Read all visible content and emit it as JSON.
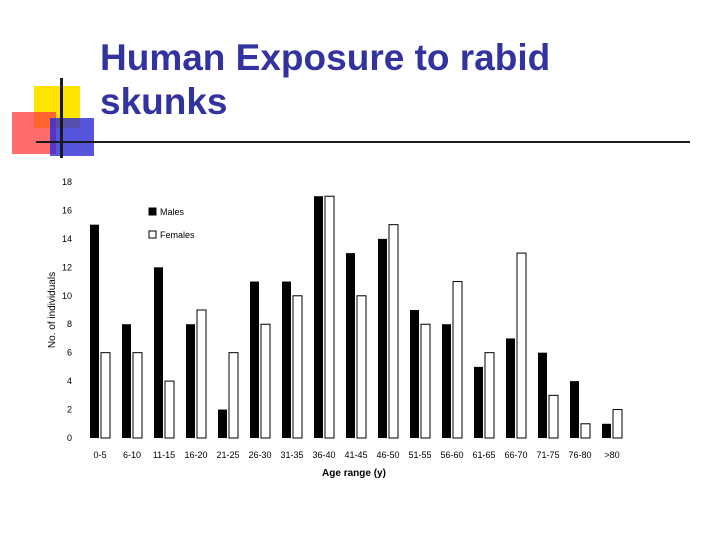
{
  "slide": {
    "title": "Human Exposure to rabid\nskunks"
  },
  "chart_data": {
    "type": "bar",
    "xlabel": "Age range (y)",
    "ylabel": "No. of individuals",
    "ylim": [
      0,
      18
    ],
    "yticks": [
      0,
      2,
      4,
      6,
      8,
      10,
      12,
      14,
      16,
      18
    ],
    "grid": false,
    "legend_position": "top-left",
    "categories": [
      "0-5",
      "6-10",
      "11-15",
      "16-20",
      "21-25",
      "26-30",
      "31-35",
      "36-40",
      "41-45",
      "46-50",
      "51-55",
      "56-60",
      "61-65",
      "66-70",
      "71-75",
      "76-80",
      ">80"
    ],
    "series": [
      {
        "name": "Males",
        "color": "#000000",
        "fill": "solid",
        "values": [
          15,
          8,
          12,
          8,
          2,
          11,
          11,
          17,
          13,
          14,
          9,
          8,
          5,
          7,
          6,
          4,
          1
        ]
      },
      {
        "name": "Females",
        "color": "#000000",
        "fill": "outline",
        "values": [
          6,
          6,
          4,
          9,
          6,
          8,
          10,
          17,
          10,
          15,
          8,
          11,
          6,
          13,
          3,
          1,
          2
        ]
      }
    ]
  }
}
